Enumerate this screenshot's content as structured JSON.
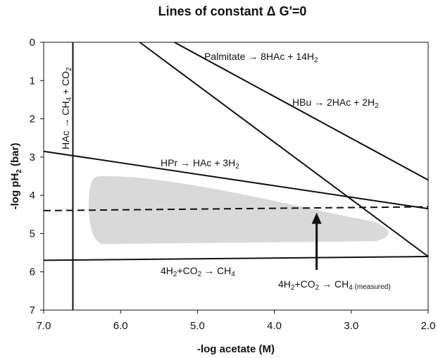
{
  "chart_data": {
    "type": "line",
    "title": "Lines of constant ΔG'=0",
    "xlabel": "-log acetate (M)",
    "ylabel": "-log pH₂ (bar)",
    "xlim": [
      7.0,
      2.0
    ],
    "ylim": [
      0,
      7
    ],
    "x_reversed": true,
    "y_reversed": true,
    "grid": false,
    "xticks": [
      "7.0",
      "6.0",
      "5.0",
      "4.0",
      "3.0",
      "2.0"
    ],
    "yticks": [
      "0",
      "1",
      "2",
      "3",
      "4",
      "5",
      "6",
      "7"
    ],
    "series": [
      {
        "name": "Palmitate → 8HAc + 14H₂",
        "style": "solid",
        "x": [
          5.75,
          2.0
        ],
        "y": [
          0.0,
          5.6
        ]
      },
      {
        "name": "HBu → 2HAc + 2H₂",
        "style": "solid",
        "x": [
          5.3,
          2.0
        ],
        "y": [
          0.0,
          3.6
        ]
      },
      {
        "name": "HPr → HAc + 3H₂",
        "style": "solid",
        "x": [
          7.0,
          2.0
        ],
        "y": [
          2.85,
          4.35
        ]
      },
      {
        "name": "4H₂+CO₂ → CH₄",
        "style": "solid",
        "x": [
          7.0,
          2.0
        ],
        "y": [
          5.7,
          5.6
        ]
      },
      {
        "name": "HAc → CH₄ + CO₂",
        "style": "solid",
        "x": [
          6.62,
          6.62
        ],
        "y": [
          0.0,
          7.0
        ]
      },
      {
        "name": "4H₂+CO₂ → CH₄ (measured)",
        "style": "dashed",
        "x": [
          7.0,
          2.0
        ],
        "y": [
          4.4,
          4.3
        ]
      }
    ],
    "shaded_region": {
      "x": [
        6.4,
        2.5
      ],
      "y": [
        3.5,
        5.2
      ],
      "color": "#d9d9d9"
    },
    "annotation_arrow": {
      "from": [
        3.45,
        5.95
      ],
      "to": [
        3.45,
        4.45
      ]
    }
  },
  "labels": {
    "title_main": "Lines of constant ",
    "title_delta": "Δ",
    "title_rest": " G'=0",
    "ylabel_main": "-log pH",
    "ylabel_sub": "2",
    "ylabel_rest": " (bar)",
    "xlabel": "-log acetate (M)",
    "palmitate": "Palmitate → 8HAc + 14H",
    "palmitate_sub": "2",
    "hbu": "HBu → 2HAc + 2H",
    "hbu_sub": "2",
    "hpr": "HPr → HAc + 3H",
    "hpr_sub": "2",
    "methan_a": "4H",
    "methan_a_sub": "2",
    "methan_b": "+CO",
    "methan_b_sub": "2",
    "methan_c": " → CH",
    "methan_c_sub": "4",
    "measured_a": "4H",
    "measured_a_sub": "2",
    "measured_b": "+CO",
    "measured_b_sub": "2",
    "measured_c": " → CH",
    "measured_c_sub": "4",
    "measured_note": " (measured)",
    "hac_a": "HAc → CH",
    "hac_a_sub": "4",
    "hac_b": " + CO",
    "hac_b_sub": "2"
  }
}
